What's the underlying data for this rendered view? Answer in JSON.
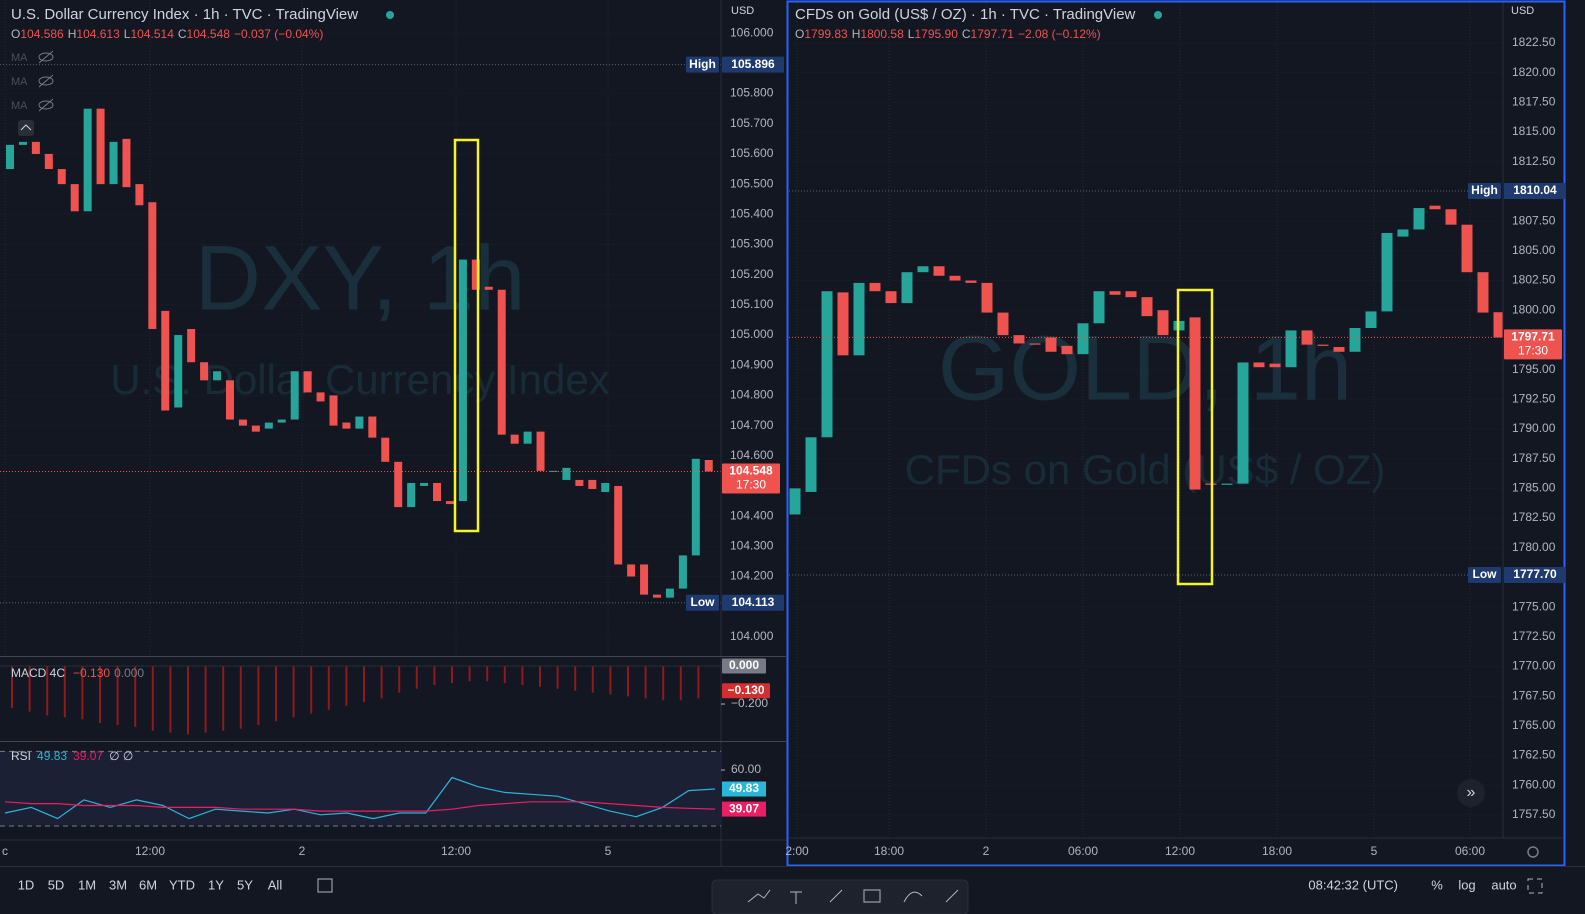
{
  "chart_data": [
    {
      "type": "candlestick",
      "title": "U.S. Dollar Currency Index · 1h · TVC · TradingView",
      "currency": "USD",
      "ohlc_labels": [
        "O",
        "H",
        "L",
        "C"
      ],
      "ohlc_values": [
        "104.586",
        "104.613",
        "104.514",
        "104.548"
      ],
      "change": "−0.037 (−0.04%)",
      "indicator_labels": [
        "MA",
        "MA",
        "MA"
      ],
      "watermark": [
        "DXY, 1h",
        "U.S. Dollar Currency Index"
      ],
      "up_color": "#26a69a",
      "down_color": "#ef5350",
      "xticks": [
        "c",
        "12:00",
        "2",
        "12:00",
        "5"
      ],
      "ylim": [
        103.94,
        106.11
      ],
      "yticks": [
        {
          "value": 106,
          "label": "106.000"
        },
        {
          "value": 105.8,
          "label": "105.800"
        },
        {
          "value": 105.7,
          "label": "105.700"
        },
        {
          "value": 105.6,
          "label": "105.600"
        },
        {
          "value": 105.5,
          "label": "105.500"
        },
        {
          "value": 105.4,
          "label": "105.400"
        },
        {
          "value": 105.3,
          "label": "105.300"
        },
        {
          "value": 105.2,
          "label": "105.200"
        },
        {
          "value": 105.1,
          "label": "105.100"
        },
        {
          "value": 105,
          "label": "105.000"
        },
        {
          "value": 104.9,
          "label": "104.900"
        },
        {
          "value": 104.8,
          "label": "104.800"
        },
        {
          "value": 104.7,
          "label": "104.700"
        },
        {
          "value": 104.6,
          "label": "104.600"
        },
        {
          "value": 104.4,
          "label": "104.400"
        },
        {
          "value": 104.3,
          "label": "104.300"
        },
        {
          "value": 104.2,
          "label": "104.200"
        },
        {
          "value": 104,
          "label": "104.000"
        }
      ],
      "open": [
        105.55,
        105.63,
        105.64,
        105.6,
        105.55,
        105.5,
        105.41,
        105.75,
        105.5,
        105.65,
        105.5,
        105.44,
        105.08,
        104.76,
        105.02,
        104.91,
        104.85,
        104.85,
        104.72,
        104.7,
        104.69,
        104.71,
        104.72,
        104.88,
        104.81,
        104.8,
        104.71,
        104.69,
        104.73,
        104.66,
        104.58,
        104.43,
        104.5,
        104.51,
        104.45,
        104.45,
        105.25,
        105.16,
        105.15,
        104.67,
        104.64,
        104.68,
        104.55,
        104.52,
        104.52,
        104.52,
        104.48,
        104.5,
        104.24,
        104.24,
        104.14,
        104.13,
        104.16,
        104.27,
        104.586
      ],
      "high": 105.896,
      "low": 104.113,
      "close": [
        105.63,
        105.64,
        105.6,
        105.55,
        105.5,
        105.41,
        105.75,
        105.5,
        105.64,
        105.49,
        105.43,
        105.02,
        104.75,
        105,
        104.91,
        104.85,
        104.88,
        104.72,
        104.7,
        104.68,
        104.71,
        104.72,
        104.88,
        104.81,
        104.78,
        104.7,
        104.69,
        104.73,
        104.66,
        104.58,
        104.43,
        104.51,
        104.51,
        104.45,
        104.44,
        105.25,
        105.15,
        105.15,
        104.67,
        104.64,
        104.68,
        104.55,
        104.55,
        104.56,
        104.5,
        104.49,
        104.51,
        104.24,
        104.2,
        104.14,
        104.13,
        104.16,
        104.27,
        104.59,
        104.548
      ],
      "high_label": "High",
      "low_label": "Low",
      "last": 104.548,
      "countdown": "17:30",
      "macd": {
        "title": "MACD 4C",
        "legend": [
          "−0.130",
          "0.000"
        ],
        "ylim": [
          -0.389,
          0.047
        ],
        "yticks": [
          {
            "value": -0.2,
            "label": "−0.200"
          }
        ],
        "signal": {
          "value": 0,
          "label": "0.000"
        },
        "last": {
          "value": -0.13,
          "label": "−0.130"
        },
        "color": "#8e1c1c",
        "histogram": [
          -0.22,
          -0.24,
          -0.26,
          -0.27,
          -0.28,
          -0.3,
          -0.31,
          -0.32,
          -0.34,
          -0.35,
          -0.36,
          -0.35,
          -0.34,
          -0.33,
          -0.31,
          -0.29,
          -0.27,
          -0.25,
          -0.23,
          -0.21,
          -0.19,
          -0.17,
          -0.14,
          -0.12,
          -0.1,
          -0.09,
          -0.08,
          -0.08,
          -0.09,
          -0.1,
          -0.11,
          -0.12,
          -0.13,
          -0.14,
          -0.15,
          -0.16,
          -0.17,
          -0.18,
          -0.18,
          -0.17
        ]
      },
      "rsi": {
        "title": "RSI",
        "legend": [
          "49.83",
          "39.07"
        ],
        "extra": "∅ ∅",
        "ylim": [
          23.6,
          75
        ],
        "yticks": [
          {
            "value": 60,
            "label": "60.00"
          }
        ],
        "bands": [
          70,
          30
        ],
        "series": [
          {
            "name": "RSI",
            "color": "#29b6d8",
            "values": [
              37,
              40,
              34,
              44,
              40,
              44,
              41,
              34,
              39,
              38,
              37,
              39,
              36,
              37,
              34,
              37,
              37,
              56,
              51,
              48,
              47,
              46,
              42,
              38,
              35,
              40,
              49,
              49.83
            ]
          },
          {
            "color": "#e91e63",
            "values": [
              43,
              42,
              42,
              41,
              41,
              41,
              40,
              40,
              40,
              39,
              39,
              39,
              38,
              38,
              38,
              38,
              38,
              39,
              41,
              42,
              43,
              43,
              43,
              42,
              41,
              40,
              39.5,
              39.07
            ]
          }
        ]
      }
    },
    {
      "type": "candlestick",
      "title": "CFDs on Gold (US$ / OZ) · 1h · TVC · TradingView",
      "currency": "USD",
      "ohlc_labels": [
        "O",
        "H",
        "L",
        "C"
      ],
      "ohlc_values": [
        "1799.83",
        "1800.58",
        "1795.90",
        "1797.71"
      ],
      "change": "−2.08 (−0.12%)",
      "watermark": [
        "GOLD, 1h",
        "CFDs on Gold (US$ / OZ)"
      ],
      "up_color": "#26a69a",
      "down_color": "#ef5350",
      "xticks": [
        "2:00",
        "18:00",
        "2",
        "06:00",
        "12:00",
        "18:00",
        "5",
        "06:00"
      ],
      "ylim": [
        1755.56,
        1826.12
      ],
      "yticks": [
        {
          "value": 1822.5,
          "label": "1822.50"
        },
        {
          "value": 1820,
          "label": "1820.00"
        },
        {
          "value": 1817.5,
          "label": "1817.50"
        },
        {
          "value": 1815,
          "label": "1815.00"
        },
        {
          "value": 1812.5,
          "label": "1812.50"
        },
        {
          "value": 1807.5,
          "label": "1807.50"
        },
        {
          "value": 1805,
          "label": "1805.00"
        },
        {
          "value": 1802.5,
          "label": "1802.50"
        },
        {
          "value": 1800,
          "label": "1800.00"
        },
        {
          "value": 1795,
          "label": "1795.00"
        },
        {
          "value": 1792.5,
          "label": "1792.50"
        },
        {
          "value": 1790,
          "label": "1790.00"
        },
        {
          "value": 1787.5,
          "label": "1787.50"
        },
        {
          "value": 1785,
          "label": "1785.00"
        },
        {
          "value": 1782.5,
          "label": "1782.50"
        },
        {
          "value": 1780,
          "label": "1780.00"
        },
        {
          "value": 1775,
          "label": "1775.00"
        },
        {
          "value": 1772.5,
          "label": "1772.50"
        },
        {
          "value": 1770,
          "label": "1770.00"
        },
        {
          "value": 1767.5,
          "label": "1767.50"
        },
        {
          "value": 1765,
          "label": "1765.00"
        },
        {
          "value": 1762.5,
          "label": "1762.50"
        },
        {
          "value": 1760,
          "label": "1760.00"
        },
        {
          "value": 1757.5,
          "label": "1757.50"
        }
      ],
      "open": [
        1782.8,
        1784.7,
        1789.3,
        1801.5,
        1796.2,
        1802.3,
        1801.6,
        1800.6,
        1803.2,
        1803.7,
        1802.9,
        1802.5,
        1802.3,
        1799.8,
        1797.9,
        1797.2,
        1797.7,
        1797,
        1796.3,
        1798.9,
        1801.6,
        1801.6,
        1801.1,
        1800,
        1798.3,
        1799.4,
        1785.4,
        1785.3,
        1785.4,
        1795.6,
        1795.5,
        1795.2,
        1798.3,
        1797.1,
        1796.9,
        1796.5,
        1798.5,
        1799.9,
        1806.2,
        1806.8,
        1808.8,
        1808.5,
        1807.2,
        1803.2,
        1799.83
      ],
      "high": 1810.04,
      "low": {
        "value": 1777.7,
        "label": "1777.70"
      },
      "close": [
        1785,
        1789.3,
        1801.6,
        1796.2,
        1802.3,
        1801.6,
        1800.6,
        1803.2,
        1803.7,
        1802.9,
        1802.5,
        1802.3,
        1799.8,
        1797.9,
        1797.2,
        1797.1,
        1796.5,
        1796.3,
        1798.9,
        1801.6,
        1801.3,
        1801.1,
        1799.5,
        1797.9,
        1799.1,
        1784.9,
        1785.3,
        1785.4,
        1795.6,
        1795.2,
        1795.2,
        1798.3,
        1797.1,
        1797,
        1796.5,
        1798.5,
        1799.9,
        1806.5,
        1806.8,
        1808.6,
        1808.5,
        1807.2,
        1803.2,
        1799.8,
        1797.71
      ],
      "high_label": "High",
      "low_label": "Low",
      "last": 1797.71,
      "countdown": "17:30"
    }
  ],
  "toolbar": {
    "ranges": [
      "1D",
      "5D",
      "1M",
      "3M",
      "6M",
      "YTD",
      "1Y",
      "5Y",
      "All"
    ],
    "clock": "08:42:32 (UTC)",
    "options": [
      "%",
      "log",
      "auto"
    ]
  }
}
